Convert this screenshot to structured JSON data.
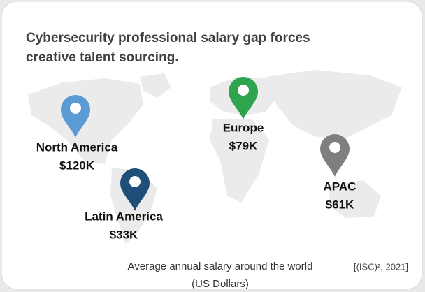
{
  "title": [
    "Cybersecurity professional salary gap forces",
    "creative talent sourcing."
  ],
  "regions": [
    {
      "name": "North America",
      "salary": "$120K",
      "color": "#5b9bd5"
    },
    {
      "name": "Latin America",
      "salary": "$33K",
      "color": "#1f4e79"
    },
    {
      "name": "Europe",
      "salary": "$79K",
      "color": "#2ea44f"
    },
    {
      "name": "APAC",
      "salary": "$61K",
      "color": "#7f7f7f"
    }
  ],
  "caption": [
    "Average annual salary around the world",
    "(US Dollars)"
  ],
  "source": "[(ISC)², 2021]"
}
